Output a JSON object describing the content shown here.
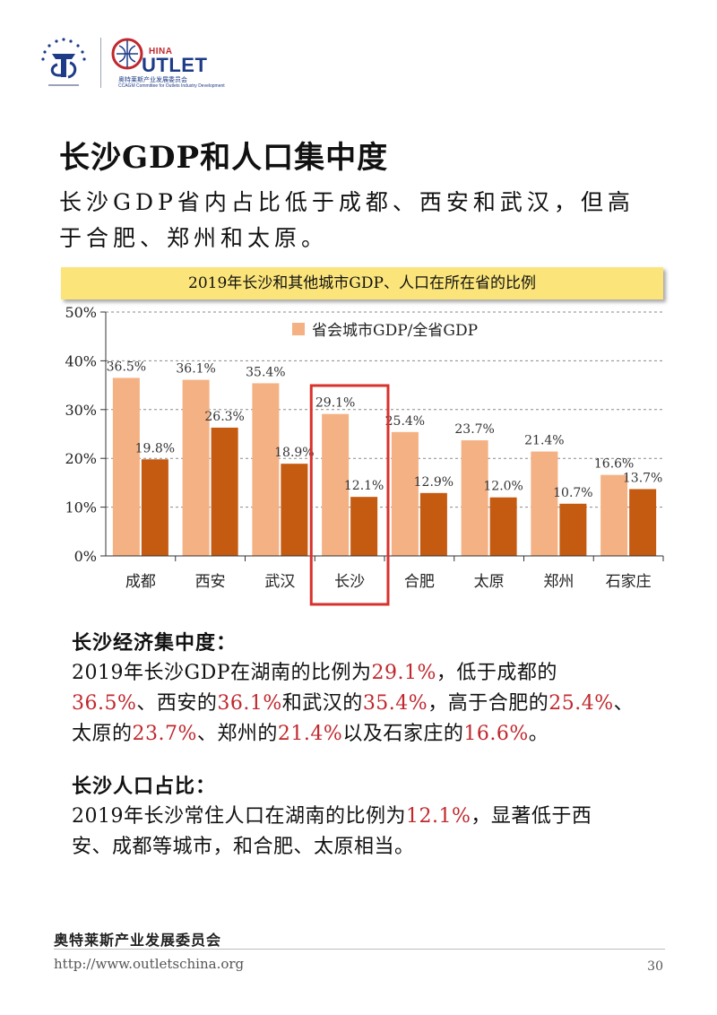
{
  "header": {
    "outlet_prefix": "HINA",
    "outlet_word": "UTLET",
    "org_cn": "奥特莱斯产业发展委员会",
    "org_en": "CCAGM Committee for Outlets Industry Development"
  },
  "title": "长沙GDP和人口集中度",
  "subtitle": "长沙GDP省内占比低于成都、西安和武汉，但高于合肥、郑州和太原。",
  "chart_banner": "2019年长沙和其他城市GDP、人口在所在省的比例",
  "chart_data": {
    "type": "bar",
    "title": "2019年长沙和其他城市GDP、人口在所在省的比例",
    "categories": [
      "成都",
      "西安",
      "武汉",
      "长沙",
      "合肥",
      "太原",
      "郑州",
      "石家庄"
    ],
    "series": [
      {
        "name": "省会城市GDP/全省GDP",
        "values": [
          36.5,
          36.1,
          35.4,
          29.1,
          25.4,
          23.7,
          21.4,
          16.6
        ],
        "color": "#f4b183"
      },
      {
        "values": [
          19.8,
          26.3,
          18.9,
          12.1,
          12.9,
          12.0,
          10.7,
          13.7
        ],
        "color": "#c55a11"
      }
    ],
    "data_labels": [
      [
        "36.5%",
        "36.1%",
        "35.4%",
        "29.1%",
        "25.4%",
        "23.7%",
        "21.4%",
        "16.6%"
      ],
      [
        "19.8%",
        "26.3%",
        "18.9%",
        "12.1%",
        "12.9%",
        "12.0%",
        "10.7%",
        "13.7%"
      ]
    ],
    "ylim": [
      0,
      50
    ],
    "yticks": [
      "0%",
      "10%",
      "20%",
      "30%",
      "40%",
      "50%"
    ],
    "grid": true,
    "legend_position": "top",
    "highlight_category": "长沙",
    "highlight_color": "#d9312b"
  },
  "sections": [
    {
      "heading": "长沙经济集中度：",
      "lines": [
        [
          [
            "2019年长沙GDP在湖南的比例为",
            false
          ],
          [
            "29.1%",
            true
          ],
          [
            "，低于成都的",
            false
          ]
        ],
        [
          [
            "36.5%",
            true
          ],
          [
            "、西安的",
            false
          ],
          [
            "36.1%",
            true
          ],
          [
            "和武汉的",
            false
          ],
          [
            "35.4%",
            true
          ],
          [
            "，高于合肥的",
            false
          ],
          [
            "25.4%",
            true
          ],
          [
            "、",
            false
          ]
        ],
        [
          [
            "太原的",
            false
          ],
          [
            "23.7%",
            true
          ],
          [
            "、郑州的",
            false
          ],
          [
            "21.4%",
            true
          ],
          [
            "以及石家庄的",
            false
          ],
          [
            "16.6%",
            true
          ],
          [
            "。",
            false
          ]
        ]
      ]
    },
    {
      "heading": "长沙人口占比：",
      "lines": [
        [
          [
            "2019年长沙常住人口在湖南的比例为",
            false
          ],
          [
            "12.1%",
            true
          ],
          [
            "，显著低于西",
            false
          ]
        ],
        [
          [
            "安、成都等城市，和合肥、太原相当。",
            false
          ]
        ]
      ]
    }
  ],
  "footer": {
    "org": "奥特莱斯产业发展委员会",
    "url": "http://www.outletschina.org",
    "page_number": "30"
  }
}
